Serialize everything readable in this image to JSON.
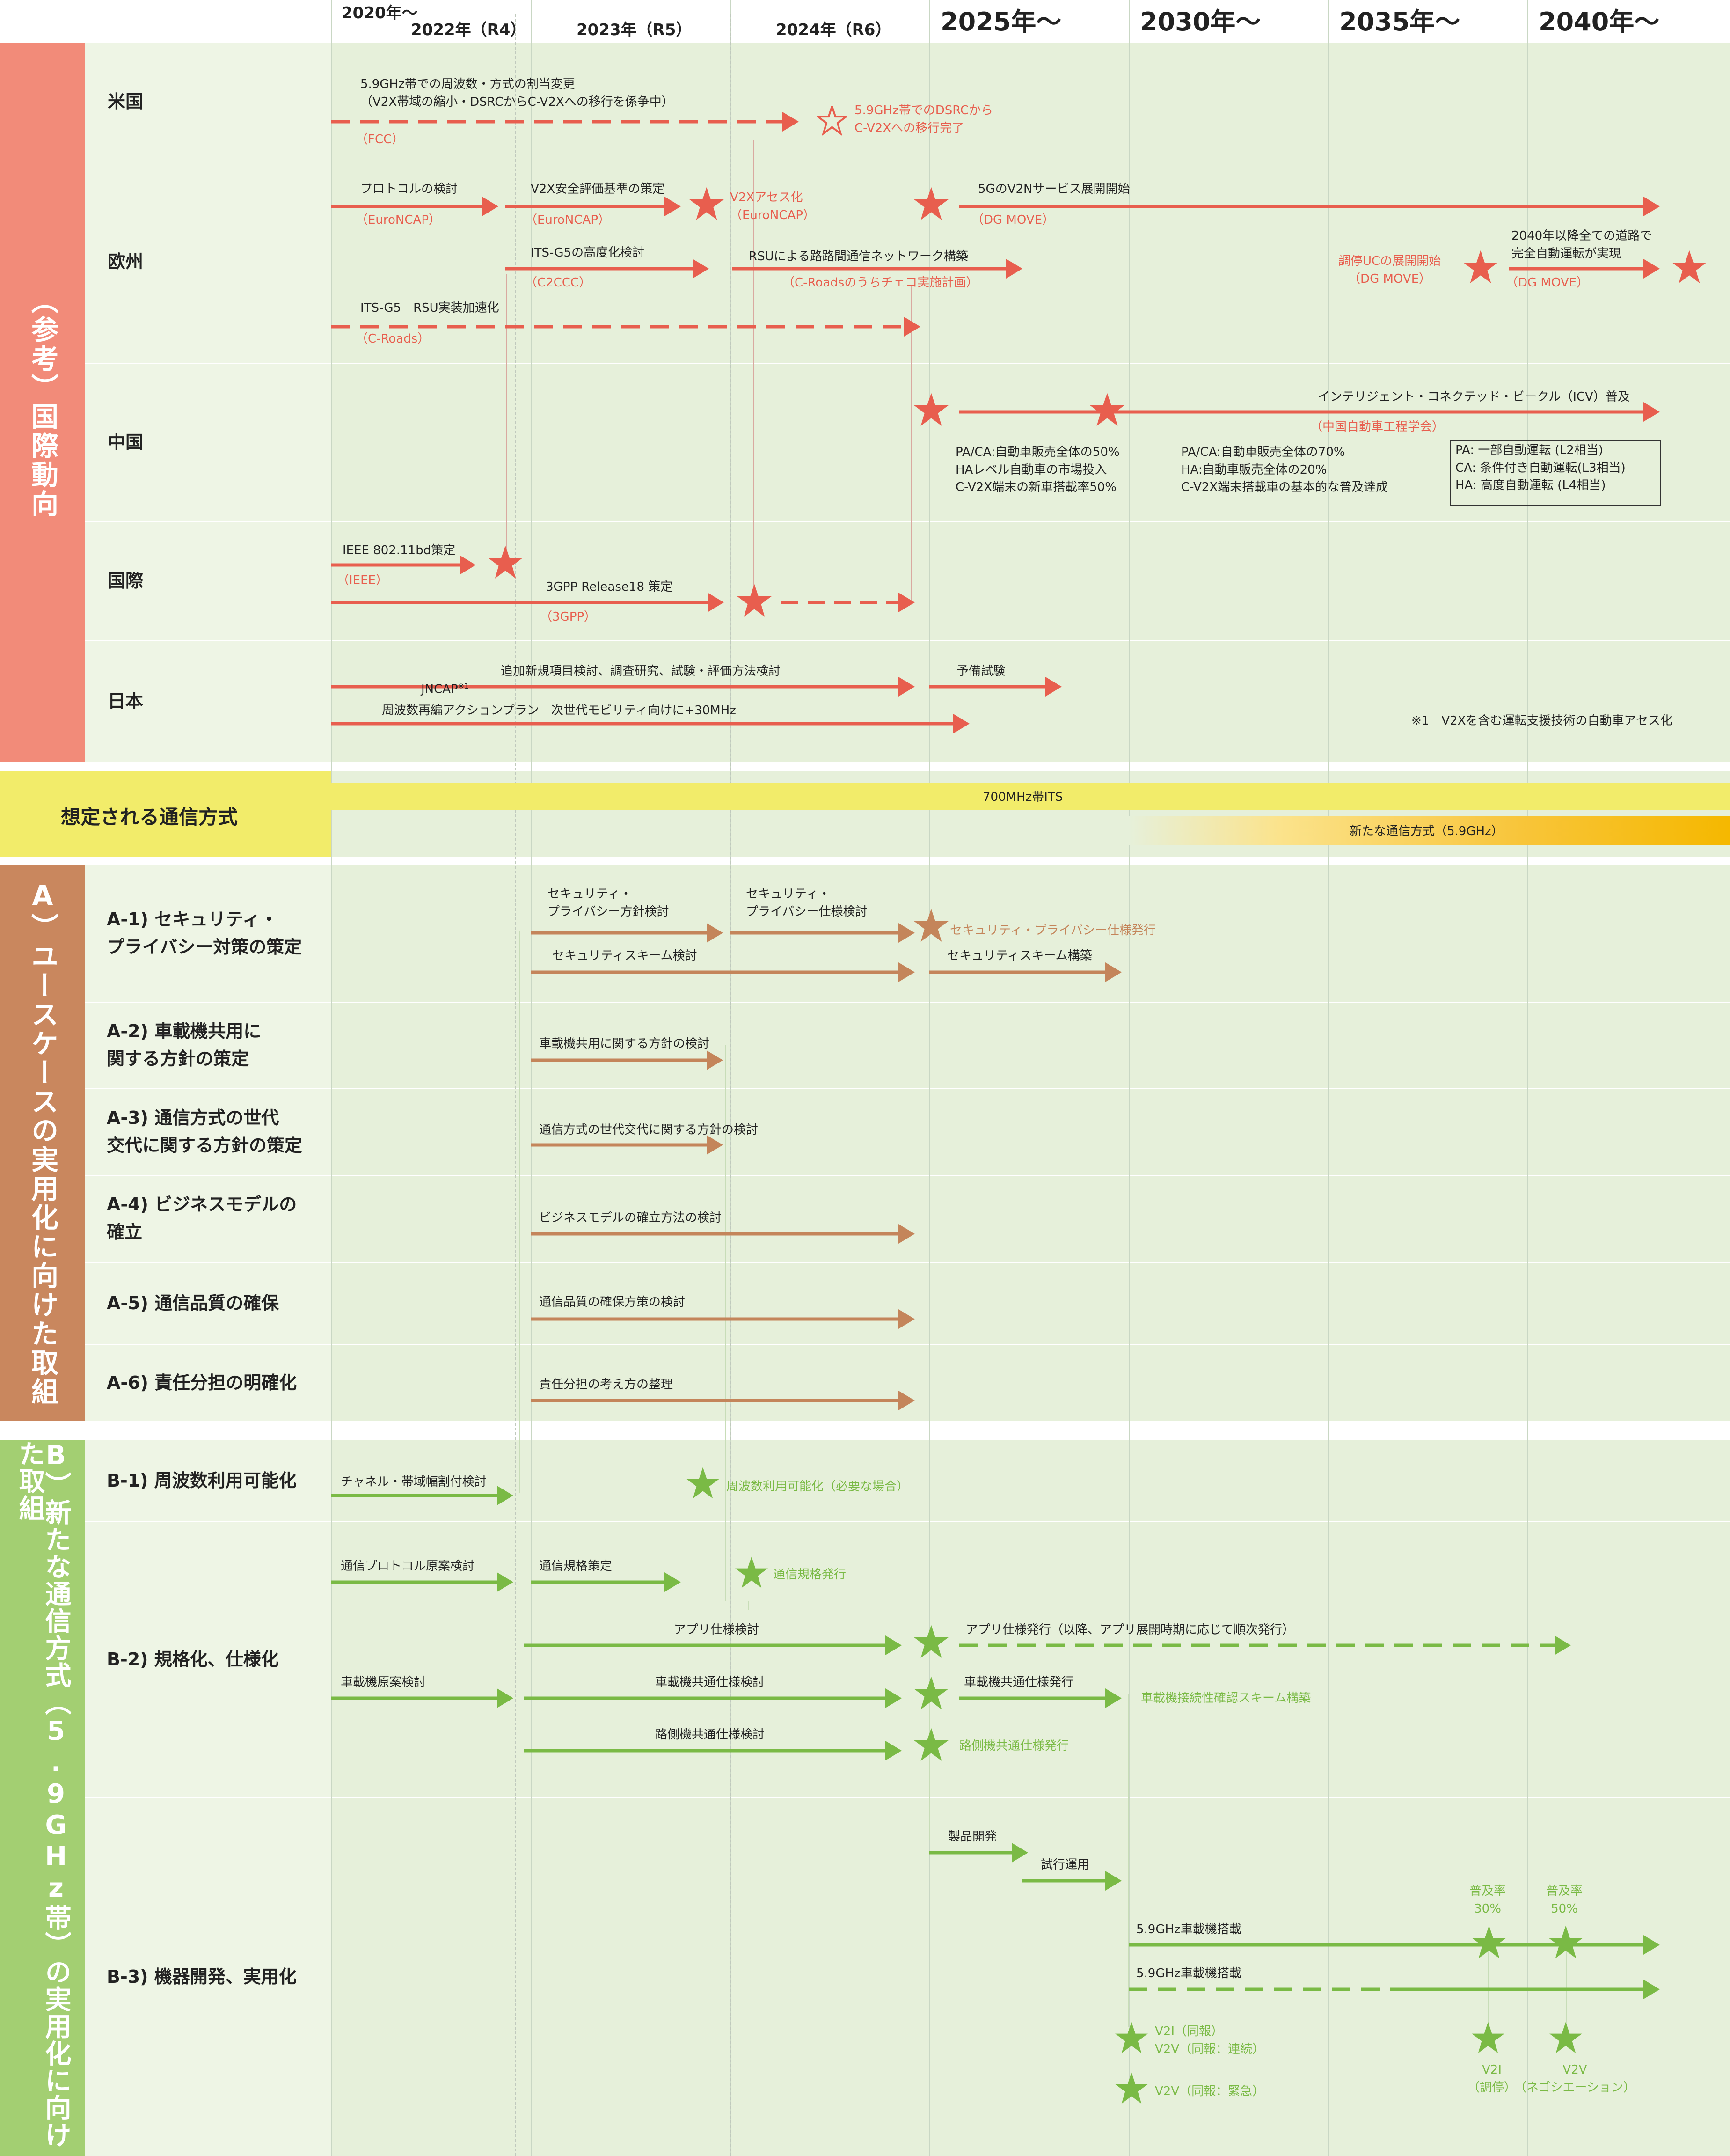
{
  "header": {
    "y2020": "2020年～",
    "y2022": "2022年（R4）",
    "y2023": "2023年（R5）",
    "y2024": "2024年（R6）",
    "y2025": "2025年～",
    "y2030": "2030年～",
    "y2035": "2035年～",
    "y2040": "2040年～"
  },
  "bands": {
    "reference": "（参考）国際動向",
    "comm": "想定される通信方式",
    "a": "A）ユースケースの実用化に向けた取組",
    "b": "B）新たな通信方式（5.9GHz帯）の実用化に向けた取組"
  },
  "rows": {
    "us": "米国",
    "eu": "欧州",
    "cn": "中国",
    "intl": "国際",
    "jp": "日本",
    "a1": "A-1) セキュリティ・\nプライバシー対策の策定",
    "a2": "A-2) 車載機共用に\n関する方針の策定",
    "a3": "A-3) 通信方式の世代\n交代に関する方針の策定",
    "a4": "A-4) ビジネスモデルの\n確立",
    "a5": "A-5) 通信品質の確保",
    "a6": "A-6) 責任分担の明確化",
    "b1": "B-1) 周波数利用可能化",
    "b2": "B-2) 規格化、仕様化",
    "b3": "B-3) 機器開発、実用化"
  },
  "us": {
    "t1": "5.9GHz帯での周波数・方式の割当変更\n（V2X帯域の縮小・DSRCからC-V2Xへの移行を係争中）",
    "t1_org": "（FCC）",
    "t2": "5.9GHz帯でのDSRCから\nC-V2Xへの移行完了"
  },
  "eu": {
    "protocol": "プロトコルの検討",
    "protocol_org": "（EuroNCAP）",
    "v2x_std": "V2X安全評価基準の策定",
    "v2x_std_org": "（EuroNCAP）",
    "v2x_assess": "V2Xアセス化\n（EuroNCAP）",
    "v2n": "5GのV2Nサービス展開開始",
    "v2n_org": "（DG MOVE）",
    "itsg5": "ITS-G5の高度化検討",
    "itsg5_org": "（C2CCC）",
    "rsu_net": "RSUによる路路間通信ネットワーク構築",
    "rsu_net_org": "（C-Roadsのうちチェコ実施計画）",
    "coop_uc": "調停UCの展開開始\n（DG MOVE）",
    "y2040": "2040年以降全ての道路で\n完全自動運転が実現",
    "y2040_org": "（DG MOVE）",
    "itsg5_rsu": "ITS-G5　RSU実装加速化",
    "itsg5_rsu_org": "（C-Roads）"
  },
  "cn": {
    "icv": "インテリジェント・コネクテッド・ビークル（ICV）普及",
    "icv_org": "（中国自動車工程学会）",
    "m1": "PA/CA:自動車販売全体の50%\nHAレベル自動車の市場投入\nC-V2X端末の新車搭載率50%",
    "m2": "PA/CA:自動車販売全体の70%\nHA:自動車販売全体の20%\nC-V2X端末搭載車の基本的な普及達成",
    "legend": "PA: 一部自動運転 (L2相当)\nCA: 条件付き自動運転(L3相当)\nHA: 高度自動運転 (L4相当)"
  },
  "intl": {
    "ieee": "IEEE 802.11bd策定",
    "ieee_org": "（IEEE）",
    "gpp": "3GPP Release18 策定",
    "gpp_org": "（3GPP）"
  },
  "jp": {
    "jncap": "JNCAP",
    "jncap_sup": "※1",
    "jncap_rest": "追加新規項目検討、調査研究、試験・評価方法検討",
    "pretest": "予備試験",
    "freq": "周波数再編アクションプラン　次世代モビリティ向けに+30MHz",
    "note": "※1　V2Xを含む運転支援技術の自動車アセス化"
  },
  "comm": {
    "its700": "700MHz帯ITS",
    "new59": "新たな通信方式（5.9GHz）"
  },
  "a": {
    "a1_policy": "セキュリティ・\nプライバシー方針検討",
    "a1_spec": "セキュリティ・\nプライバシー仕様検討",
    "a1_issue": "セキュリティ・プライバシー仕様発行",
    "a1_scheme": "セキュリティスキーム検討",
    "a1_build": "セキュリティスキーム構築",
    "a2": "車載機共用に関する方針の検討",
    "a3": "通信方式の世代交代に関する方針の検討",
    "a4": "ビジネスモデルの確立方法の検討",
    "a5": "通信品質の確保方策の検討",
    "a6": "責任分担の考え方の整理"
  },
  "b": {
    "b1_ch": "チャネル・帯域幅割付検討",
    "b1_ok": "周波数利用可能化（必要な場合）",
    "b2_proto": "通信プロトコル原案検討",
    "b2_std": "通信規格策定",
    "b2_issue": "通信規格発行",
    "b2_app": "アプリ仕様検討",
    "b2_app_issue": "アプリ仕様発行（以降、アプリ展開時期に応じて順次発行）",
    "b2_obu_draft": "車載機原案検討",
    "b2_obu_common": "車載機共通仕様検討",
    "b2_obu_issue": "車載機共通仕様発行",
    "b2_obu_scheme": "車載機接続性確認スキーム構築",
    "b2_rsu": "路側機共通仕様検討",
    "b2_rsu_issue": "路側機共通仕様発行",
    "b3_dev": "製品開発",
    "b3_trial": "試行運用",
    "b3_p30": "普及率\n30%",
    "b3_p50": "普及率\n50%",
    "b3_obu1": "5.9GHz車載機搭載",
    "b3_obu2": "5.9GHz車載機搭載",
    "b3_v2i": "V2I（同報）\nV2V（同報：連続）",
    "b3_v2v_em": "V2V（同報：緊急）",
    "b3_v2i_coop": "V2I\n（調停）",
    "b3_v2v_neg": "V2V\n（ネゴシエーション）"
  },
  "colors": {
    "ref_band": "#f28b79",
    "comm_band": "#f2ec6a",
    "a_band": "#c9875e",
    "b_band": "#a3cf72",
    "red": "#e85e4e",
    "orange": "#c4855a",
    "green": "#7aba45",
    "bg": "#e9f2df"
  }
}
